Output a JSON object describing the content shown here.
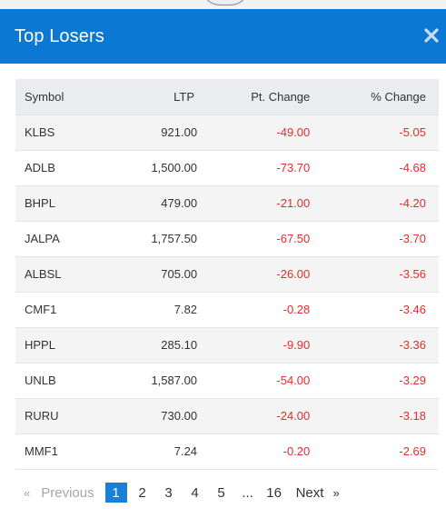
{
  "modal": {
    "title": "Top Losers"
  },
  "table": {
    "headers": {
      "symbol": "Symbol",
      "ltp": "LTP",
      "pt_change": "Pt. Change",
      "pct_change": "% Change"
    },
    "rows": [
      {
        "symbol": "KLBS",
        "ltp": "921.00",
        "pt_change": "-49.00",
        "pct_change": "-5.05"
      },
      {
        "symbol": "ADLB",
        "ltp": "1,500.00",
        "pt_change": "-73.70",
        "pct_change": "-4.68"
      },
      {
        "symbol": "BHPL",
        "ltp": "479.00",
        "pt_change": "-21.00",
        "pct_change": "-4.20"
      },
      {
        "symbol": "JALPA",
        "ltp": "1,757.50",
        "pt_change": "-67.50",
        "pct_change": "-3.70"
      },
      {
        "symbol": "ALBSL",
        "ltp": "705.00",
        "pt_change": "-26.00",
        "pct_change": "-3.56"
      },
      {
        "symbol": "CMF1",
        "ltp": "7.82",
        "pt_change": "-0.28",
        "pct_change": "-3.46"
      },
      {
        "symbol": "HPPL",
        "ltp": "285.10",
        "pt_change": "-9.90",
        "pct_change": "-3.36"
      },
      {
        "symbol": "UNLB",
        "ltp": "1,587.00",
        "pt_change": "-54.00",
        "pct_change": "-3.29"
      },
      {
        "symbol": "RURU",
        "ltp": "730.00",
        "pt_change": "-24.00",
        "pct_change": "-3.18"
      },
      {
        "symbol": "MMF1",
        "ltp": "7.24",
        "pt_change": "-0.20",
        "pct_change": "-2.69"
      }
    ]
  },
  "pagination": {
    "previous_label": "Previous",
    "prev_arrow": "«",
    "pages": [
      "1",
      "2",
      "3",
      "4",
      "5"
    ],
    "ellipsis": "...",
    "last_page": "16",
    "next_label": "Next",
    "next_arrow": "»",
    "current_page": "1"
  },
  "colors": {
    "header_bg": "#0b78d4",
    "negative": "#e22d2d",
    "active_page": "#1a7fd6"
  },
  "icons": {
    "close": "close-icon"
  }
}
